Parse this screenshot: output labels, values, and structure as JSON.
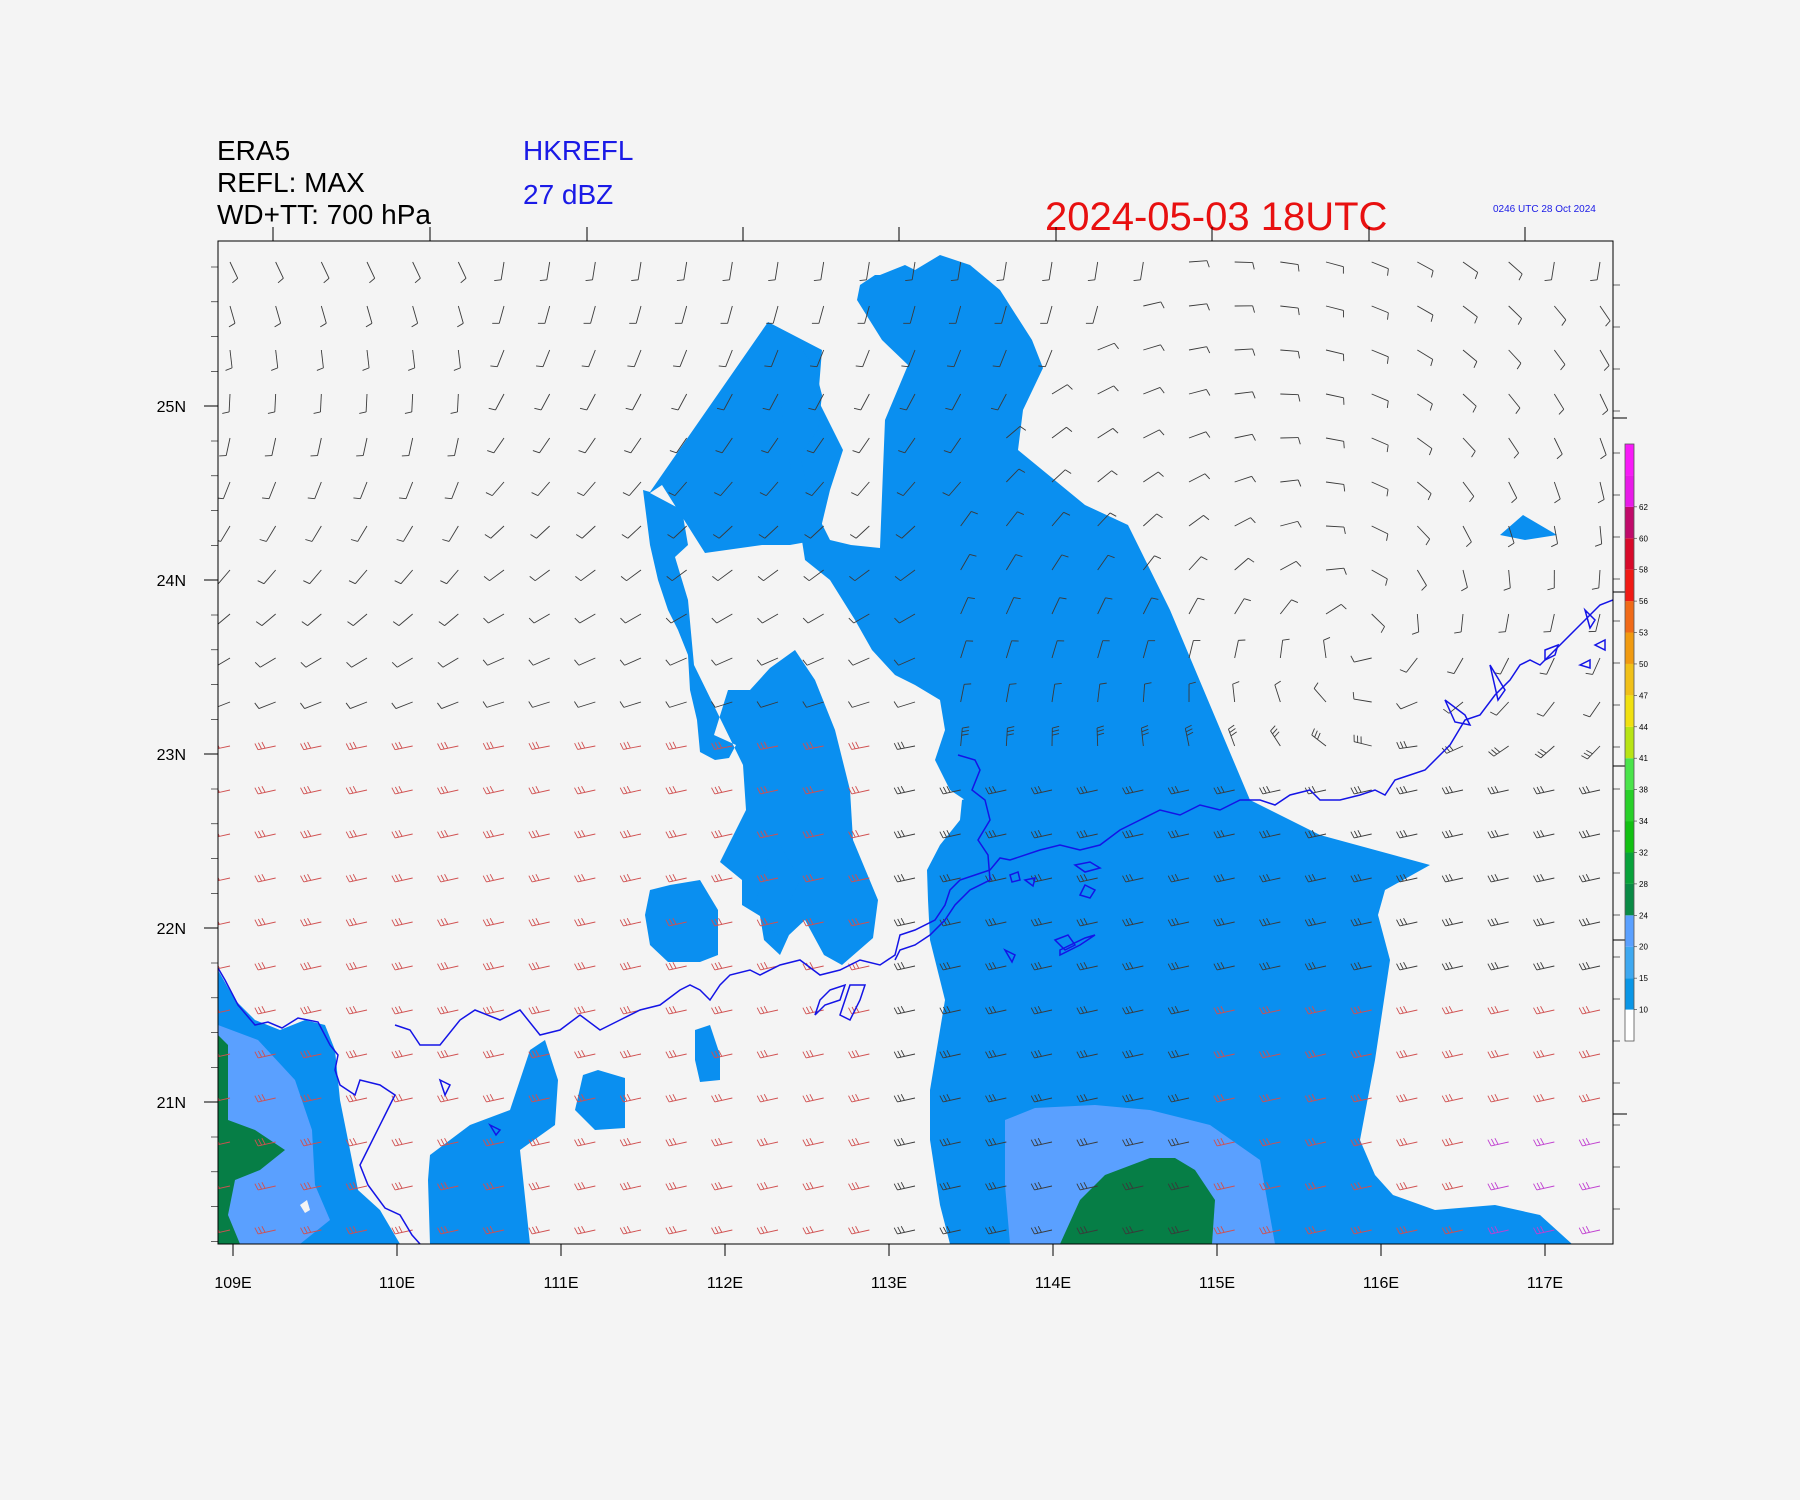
{
  "header": {
    "model": "ERA5",
    "refl": "REFL: MAX",
    "wind": "WD+TT: 700 hPa",
    "product": "HKREFL",
    "threshold": "27 dBZ",
    "datetime": "2024-05-03  18UTC",
    "stamp": "0246 UTC 28 Oct 2024"
  },
  "map": {
    "lon_labels": [
      "109E",
      "110E",
      "111E",
      "112E",
      "113E",
      "114E",
      "115E",
      "116E",
      "117E"
    ],
    "lat_labels": [
      "25N",
      "24N",
      "23N",
      "22N",
      "21N"
    ]
  },
  "colorbar": {
    "labels": [
      "10",
      "15",
      "20",
      "24",
      "28",
      "32",
      "34",
      "38",
      "41",
      "44",
      "47",
      "50",
      "53",
      "56",
      "58",
      "60",
      "62"
    ],
    "colors": [
      "#0a96e6",
      "#3ea8f0",
      "#5aa0ff",
      "#0a8a45",
      "#08a23a",
      "#12c012",
      "#28d028",
      "#4ae44a",
      "#b8e414",
      "#f0e010",
      "#f0c018",
      "#f09a10",
      "#f06a18",
      "#f01a14",
      "#d80a2a",
      "#c00a6a",
      "#e81ae8",
      "#f81af8"
    ],
    "accent_blue": "#0a8ff0",
    "accent_green": "#067e46",
    "coast_color": "#1414e6"
  }
}
